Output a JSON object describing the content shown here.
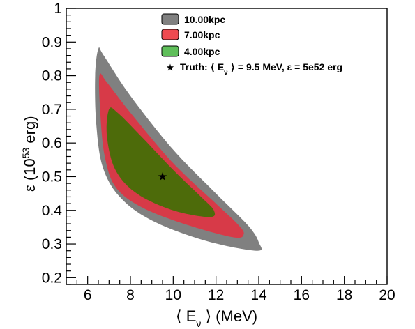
{
  "chart_data": {
    "type": "contour",
    "xlabel": "⟨ E",
    "xlabel_sub": "ν",
    "xlabel_suffix": " ⟩ (MeV)",
    "ylabel": "ε (10",
    "ylabel_sup": "53",
    "ylabel_suffix": " erg)",
    "xlim": [
      5,
      20
    ],
    "ylim": [
      0.18,
      1.0
    ],
    "x_ticks": [
      "6",
      "8",
      "10",
      "12",
      "14",
      "16",
      "18",
      "20"
    ],
    "y_ticks": [
      "0.2",
      "0.3",
      "0.4",
      "0.5",
      "0.6",
      "0.7",
      "0.8",
      "0.9",
      "1"
    ],
    "grid": false,
    "legend_position": "top-right",
    "series": [
      {
        "name": "10.00kpc",
        "color": "#808080",
        "points": [
          [
            6.5,
            0.88
          ],
          [
            6.75,
            0.86
          ],
          [
            8.0,
            0.74
          ],
          [
            10.0,
            0.58
          ],
          [
            12.0,
            0.45
          ],
          [
            13.5,
            0.355
          ],
          [
            14.0,
            0.305
          ],
          [
            13.9,
            0.28
          ],
          [
            11.5,
            0.31
          ],
          [
            9.0,
            0.37
          ],
          [
            7.5,
            0.44
          ],
          [
            6.7,
            0.53
          ],
          [
            6.4,
            0.66
          ],
          [
            6.35,
            0.8
          ]
        ]
      },
      {
        "name": "7.00kpc",
        "color": "#d73a48",
        "points": [
          [
            6.55,
            0.8
          ],
          [
            6.9,
            0.78
          ],
          [
            8.0,
            0.69
          ],
          [
            10.0,
            0.54
          ],
          [
            12.0,
            0.42
          ],
          [
            13.0,
            0.36
          ],
          [
            13.3,
            0.33
          ],
          [
            12.8,
            0.32
          ],
          [
            10.5,
            0.36
          ],
          [
            8.5,
            0.41
          ],
          [
            7.3,
            0.47
          ],
          [
            6.8,
            0.56
          ],
          [
            6.6,
            0.68
          ]
        ]
      },
      {
        "name": "4.00kpc",
        "color": "#4d6b0a",
        "points": [
          [
            7.0,
            0.7
          ],
          [
            7.4,
            0.69
          ],
          [
            8.5,
            0.62
          ],
          [
            10.0,
            0.52
          ],
          [
            11.3,
            0.44
          ],
          [
            11.9,
            0.4
          ],
          [
            11.7,
            0.38
          ],
          [
            10.0,
            0.4
          ],
          [
            8.3,
            0.45
          ],
          [
            7.3,
            0.52
          ],
          [
            6.9,
            0.62
          ]
        ]
      }
    ],
    "truth_marker": {
      "label": "Truth: ⟨ E",
      "label_sub": "ν",
      "label_suffix": " ⟩ = 9.5 MeV, ε = 5e52 erg",
      "x": 9.5,
      "y": 0.5
    },
    "legend_swatch_colors": [
      "#808080",
      "#ee4a50",
      "#5fbf5a"
    ]
  }
}
